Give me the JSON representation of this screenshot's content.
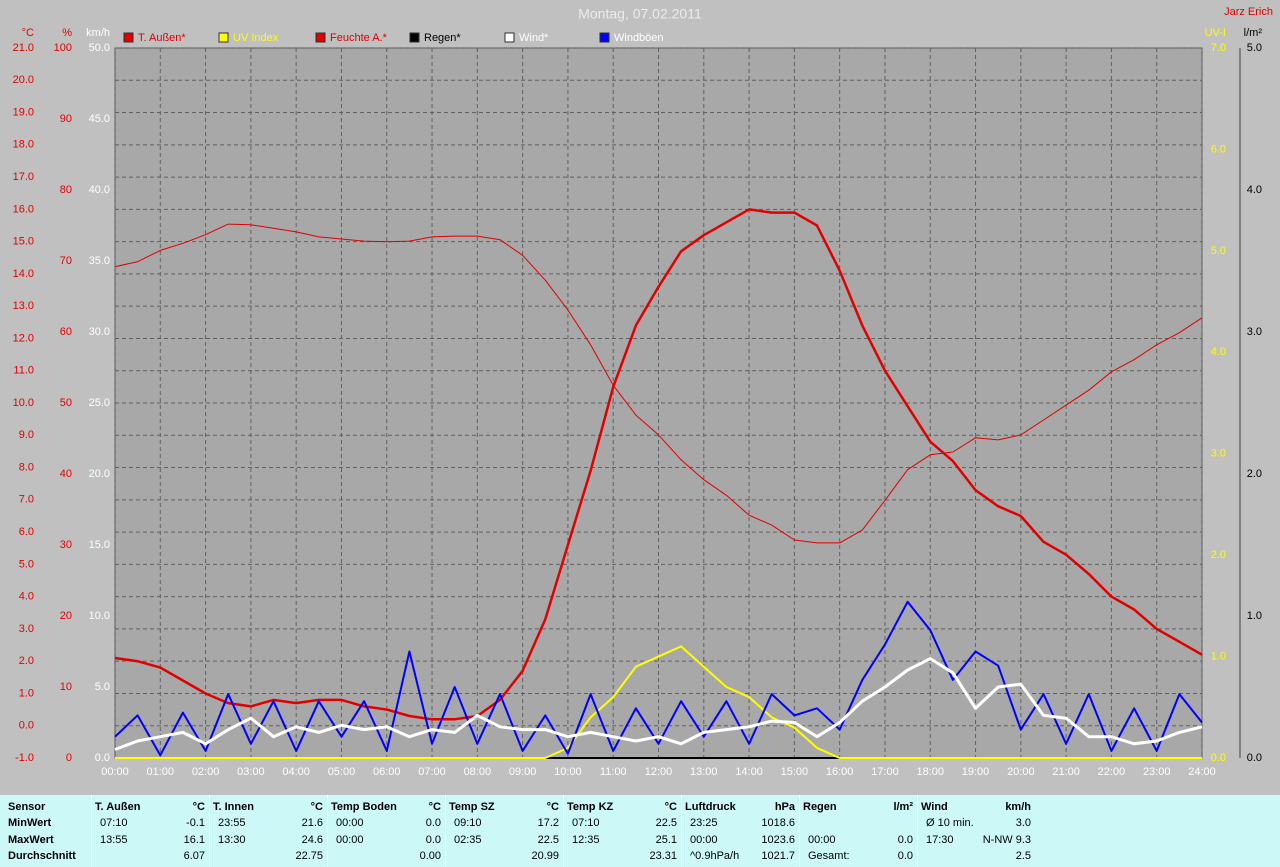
{
  "chart_data": {
    "type": "line",
    "title": "Montag, 07.02.2011",
    "credit": "Jarz Erich",
    "xlim": [
      0,
      24
    ],
    "xticks": [
      {
        "value": 0,
        "label": "00:00"
      },
      {
        "value": 1,
        "label": "01:00"
      },
      {
        "value": 2,
        "label": "02:00"
      },
      {
        "value": 3,
        "label": "03:00"
      },
      {
        "value": 4,
        "label": "04:00"
      },
      {
        "value": 5,
        "label": "05:00"
      },
      {
        "value": 6,
        "label": "06:00"
      },
      {
        "value": 7,
        "label": "07:00"
      },
      {
        "value": 8,
        "label": "08:00"
      },
      {
        "value": 9,
        "label": "09:00"
      },
      {
        "value": 10,
        "label": "10:00"
      },
      {
        "value": 11,
        "label": "11:00"
      },
      {
        "value": 12,
        "label": "12:00"
      },
      {
        "value": 13,
        "label": "13:00"
      },
      {
        "value": 14,
        "label": "14:00"
      },
      {
        "value": 15,
        "label": "15:00"
      },
      {
        "value": 16,
        "label": "16:00"
      },
      {
        "value": 17,
        "label": "17:00"
      },
      {
        "value": 18,
        "label": "18:00"
      },
      {
        "value": 19,
        "label": "19:00"
      },
      {
        "value": 20,
        "label": "20:00"
      },
      {
        "value": 21,
        "label": "21:00"
      },
      {
        "value": 22,
        "label": "22:00"
      },
      {
        "value": 23,
        "label": "23:00"
      },
      {
        "value": 24,
        "label": "24:00"
      }
    ],
    "grid": "y",
    "xgrid": true,
    "axes": [
      {
        "id": "y",
        "label": "°C",
        "color": "#e00000",
        "lim": [
          -1,
          21
        ],
        "ticks": [
          {
            "value": -1,
            "label": "-1.0"
          },
          {
            "value": 0,
            "label": "0.0"
          },
          {
            "value": 1,
            "label": "1.0"
          },
          {
            "value": 2,
            "label": "2.0"
          },
          {
            "value": 3,
            "label": "3.0"
          },
          {
            "value": 4,
            "label": "4.0"
          },
          {
            "value": 5,
            "label": "5.0"
          },
          {
            "value": 6,
            "label": "6.0"
          },
          {
            "value": 7,
            "label": "7.0"
          },
          {
            "value": 8,
            "label": "8.0"
          },
          {
            "value": 9,
            "label": "9.0"
          },
          {
            "value": 10,
            "label": "10.0"
          },
          {
            "value": 11,
            "label": "11.0"
          },
          {
            "value": 12,
            "label": "12.0"
          },
          {
            "value": 13,
            "label": "13.0"
          },
          {
            "value": 14,
            "label": "14.0"
          },
          {
            "value": 15,
            "label": "15.0"
          },
          {
            "value": 16,
            "label": "16.0"
          },
          {
            "value": 17,
            "label": "17.0"
          },
          {
            "value": 18,
            "label": "18.0"
          },
          {
            "value": 19,
            "label": "19.0"
          },
          {
            "value": 20,
            "label": "20.0"
          },
          {
            "value": 21,
            "label": "21.0"
          }
        ]
      },
      {
        "id": "y2",
        "label": "%",
        "color": "#e00000",
        "lim": [
          0,
          100
        ],
        "ticks": [
          0,
          10,
          20,
          30,
          40,
          50,
          60,
          70,
          80,
          90,
          100
        ]
      },
      {
        "id": "y3",
        "label": "km/h",
        "color": "#ffffff",
        "lim": [
          0,
          50
        ],
        "ticks": [
          {
            "value": 0,
            "label": "0.0"
          },
          {
            "value": 5,
            "label": "5.0"
          },
          {
            "value": 10,
            "label": "10.0"
          },
          {
            "value": 15,
            "label": "15.0"
          },
          {
            "value": 20,
            "label": "20.0"
          },
          {
            "value": 25,
            "label": "25.0"
          },
          {
            "value": 30,
            "label": "30.0"
          },
          {
            "value": 35,
            "label": "35.0"
          },
          {
            "value": 40,
            "label": "40.0"
          },
          {
            "value": 45,
            "label": "45.0"
          },
          {
            "value": 50,
            "label": "50.0"
          }
        ]
      },
      {
        "id": "y4",
        "label": "UV-I",
        "color": "#ffff00",
        "lim": [
          0,
          7
        ],
        "ticks": [
          {
            "value": 0,
            "label": "0.0"
          },
          {
            "value": 1,
            "label": "1.0"
          },
          {
            "value": 2,
            "label": "2.0"
          },
          {
            "value": 3,
            "label": "3.0"
          },
          {
            "value": 4,
            "label": "4.0"
          },
          {
            "value": 5,
            "label": "5.0"
          },
          {
            "value": 6,
            "label": "6.0"
          },
          {
            "value": 7,
            "label": "7.0"
          }
        ]
      },
      {
        "id": "y5",
        "label": "l/m²",
        "color": "#000000",
        "lim": [
          0,
          5
        ],
        "ticks": [
          {
            "value": 0,
            "label": "0.0"
          },
          {
            "value": 1,
            "label": "1.0"
          },
          {
            "value": 2,
            "label": "2.0"
          },
          {
            "value": 3,
            "label": "3.0"
          },
          {
            "value": 4,
            "label": "4.0"
          },
          {
            "value": 5,
            "label": "5.0"
          }
        ]
      }
    ],
    "x": [
      0,
      0.5,
      1,
      1.5,
      2,
      2.5,
      3,
      3.5,
      4,
      4.5,
      5,
      5.5,
      6,
      6.5,
      7,
      7.5,
      8,
      8.5,
      9,
      9.5,
      10,
      10.5,
      11,
      11.5,
      12,
      12.5,
      13,
      13.5,
      14,
      14.5,
      15,
      15.5,
      16,
      16.5,
      17,
      17.5,
      18,
      18.5,
      19,
      19.5,
      20,
      20.5,
      21,
      21.5,
      22,
      22.5,
      23,
      23.5,
      24
    ],
    "series": [
      {
        "name": "T. Außen*",
        "color": "#e00000",
        "axis": "y",
        "width": 2.5,
        "values": [
          2.1,
          2.0,
          1.8,
          1.4,
          1.0,
          0.7,
          0.6,
          0.8,
          0.7,
          0.8,
          0.8,
          0.6,
          0.5,
          0.3,
          0.2,
          0.2,
          0.3,
          0.8,
          1.7,
          3.3,
          5.6,
          7.9,
          10.5,
          12.4,
          13.6,
          14.7,
          15.2,
          15.6,
          16.0,
          15.9,
          15.9,
          15.5,
          14.1,
          12.4,
          11.0,
          9.9,
          8.8,
          8.2,
          7.3,
          6.8,
          6.5,
          5.7,
          5.3,
          4.7,
          4.0,
          3.6,
          3.0,
          2.6,
          2.2
        ]
      },
      {
        "name": "UV Index",
        "color": "#ffff00",
        "axis": "y4",
        "width": 2,
        "values": [
          0,
          0,
          0,
          0,
          0,
          0,
          0,
          0,
          0,
          0,
          0,
          0,
          0,
          0,
          0,
          0,
          0,
          0,
          0,
          0,
          0.1,
          0.4,
          0.6,
          0.9,
          1.0,
          1.1,
          0.9,
          0.7,
          0.6,
          0.4,
          0.3,
          0.1,
          0,
          0,
          0,
          0,
          0,
          0,
          0,
          0,
          0,
          0,
          0,
          0,
          0,
          0,
          0,
          0,
          0
        ]
      },
      {
        "name": "Feuchte A.*",
        "color": "#e00000",
        "axis": "y2",
        "width": 1,
        "values": [
          69.2,
          69.9,
          71.5,
          72.5,
          73.7,
          75.2,
          75.1,
          74.6,
          74.1,
          73.4,
          73.1,
          72.8,
          72.7,
          72.8,
          73.4,
          73.5,
          73.5,
          73.0,
          70.8,
          67.3,
          63.1,
          58.2,
          52.5,
          48.3,
          45.5,
          42.0,
          39.2,
          37.0,
          34.2,
          32.8,
          30.7,
          30.3,
          30.3,
          32.1,
          36.3,
          40.6,
          42.7,
          43.1,
          45.1,
          44.8,
          45.5,
          47.6,
          49.7,
          51.8,
          54.4,
          56.1,
          58.2,
          59.9,
          62.0
        ]
      },
      {
        "name": "Regen*",
        "color": "#000000",
        "axis": "y5",
        "width": 2,
        "values": [
          0,
          0,
          0,
          0,
          0,
          0,
          0,
          0,
          0,
          0,
          0,
          0,
          0,
          0,
          0,
          0,
          0,
          0,
          0,
          0,
          0,
          0,
          0,
          0,
          0,
          0,
          0,
          0,
          0,
          0,
          0,
          0,
          0,
          0,
          0,
          0,
          0,
          0,
          0,
          0,
          0,
          0,
          0,
          0,
          0,
          0,
          0,
          0,
          0
        ]
      },
      {
        "name": "Wind*",
        "color": "#ffffff",
        "axis": "y3",
        "width": 3,
        "values": [
          0.6,
          1.2,
          1.5,
          1.8,
          1.0,
          2.0,
          2.8,
          1.5,
          2.2,
          1.8,
          2.3,
          2.0,
          2.2,
          1.5,
          2.0,
          1.8,
          3.0,
          2.2,
          2.0,
          2.0,
          1.5,
          1.8,
          1.5,
          1.2,
          1.5,
          1.0,
          1.8,
          2.0,
          2.2,
          2.6,
          2.5,
          1.5,
          2.5,
          4.0,
          5.0,
          6.2,
          7.0,
          6.0,
          3.5,
          5.0,
          5.2,
          3.0,
          2.8,
          1.5,
          1.5,
          1.0,
          1.2,
          1.8,
          2.2
        ]
      },
      {
        "name": "Windböen",
        "color": "#0000ff",
        "axis": "y3",
        "width": 2,
        "values": [
          1.5,
          3.0,
          0.2,
          3.2,
          0.5,
          4.5,
          1.0,
          4.0,
          0.5,
          4.0,
          1.5,
          4.0,
          0.5,
          7.5,
          1.0,
          5.0,
          1.0,
          4.5,
          0.5,
          3.0,
          0.3,
          4.5,
          0.5,
          3.5,
          1.0,
          4.0,
          1.5,
          4.0,
          1.0,
          4.5,
          3.0,
          3.5,
          2.0,
          5.5,
          8.0,
          11.0,
          9.0,
          5.5,
          7.5,
          6.5,
          2.0,
          4.5,
          1.0,
          4.5,
          0.5,
          3.5,
          0.5,
          4.5,
          2.5
        ]
      }
    ]
  },
  "table": {
    "row_labels": [
      "Sensor",
      "MinWert",
      "MaxWert",
      "Durchschnitt"
    ],
    "groups": [
      {
        "name": "T. Außen",
        "unit": "°C",
        "rows": [
          [
            "07:10",
            "-0.1"
          ],
          [
            "13:55",
            "16.1"
          ],
          [
            null,
            "6.07"
          ]
        ]
      },
      {
        "name": "T. Innen",
        "unit": "°C",
        "rows": [
          [
            "23:55",
            "21.6"
          ],
          [
            "13:30",
            "24.6"
          ],
          [
            null,
            "22.75"
          ]
        ]
      },
      {
        "name": "Temp Boden",
        "unit": "°C",
        "rows": [
          [
            "00:00",
            "0.0"
          ],
          [
            "00:00",
            "0.0"
          ],
          [
            null,
            "0.00"
          ]
        ]
      },
      {
        "name": "Temp SZ",
        "unit": "°C",
        "rows": [
          [
            "09:10",
            "17.2"
          ],
          [
            "02:35",
            "22.5"
          ],
          [
            null,
            "20.99"
          ]
        ]
      },
      {
        "name": "Temp KZ",
        "unit": "°C",
        "rows": [
          [
            "07:10",
            "22.5"
          ],
          [
            "12:35",
            "25.1"
          ],
          [
            null,
            "23.31"
          ]
        ]
      },
      {
        "name": "Luftdruck",
        "unit": "hPa",
        "rows": [
          [
            "23:25",
            "1018.6"
          ],
          [
            "00:00",
            "1023.6"
          ],
          [
            "^0.9hPa/h",
            "1021.7"
          ]
        ]
      },
      {
        "name": "Regen",
        "unit": "l/m²",
        "rows": [
          [
            null,
            null
          ],
          [
            "00:00",
            "0.0"
          ],
          [
            "Gesamt:",
            "0.0"
          ]
        ]
      },
      {
        "name": "Wind",
        "unit": "km/h",
        "rows": [
          [
            "Ø 10 min.",
            "3.0"
          ],
          [
            "17:30",
            "N-NW 9.3"
          ],
          [
            null,
            "2.5"
          ]
        ]
      }
    ]
  }
}
